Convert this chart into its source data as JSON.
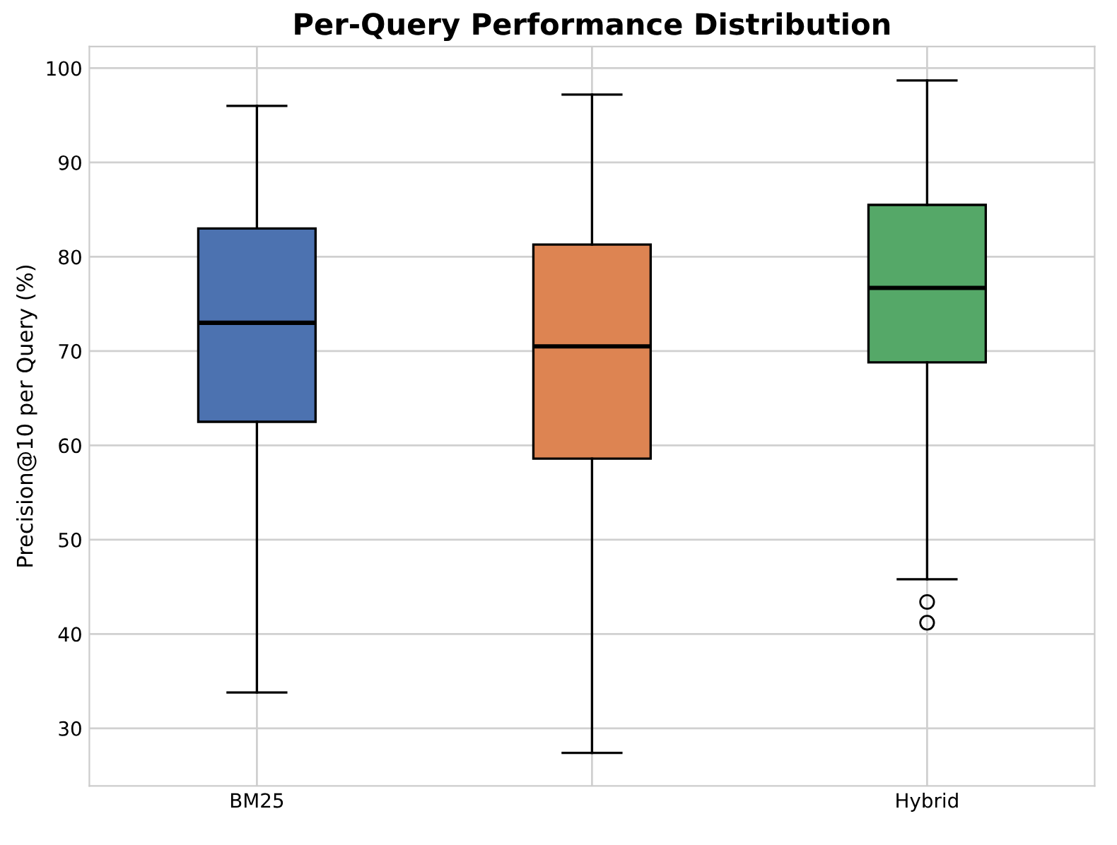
{
  "chart_data": {
    "type": "box",
    "title": "Per-Query Performance Distribution",
    "ylabel": "Precision@10 per Query (%)",
    "categories": [
      "BM25",
      null,
      "Hybrid"
    ],
    "colors": [
      "#4c72b0",
      "#dd8452",
      "#55a868"
    ],
    "boxes": [
      {
        "low": 33.8,
        "q1": 62.5,
        "median": 73,
        "q3": 83,
        "high": 96
      },
      {
        "low": 27.4,
        "q1": 58.6,
        "median": 70.5,
        "q3": 81.3,
        "high": 97.2
      },
      {
        "low": 45.8,
        "q1": 68.8,
        "median": 76.7,
        "q3": 85.5,
        "high": 98.7,
        "outliers": [
          43.4,
          41.2
        ]
      }
    ],
    "ylim": [
      23.9,
      102.3
    ],
    "yticks": [
      30,
      40,
      50,
      60,
      70,
      80,
      90,
      100
    ],
    "grid": true
  }
}
